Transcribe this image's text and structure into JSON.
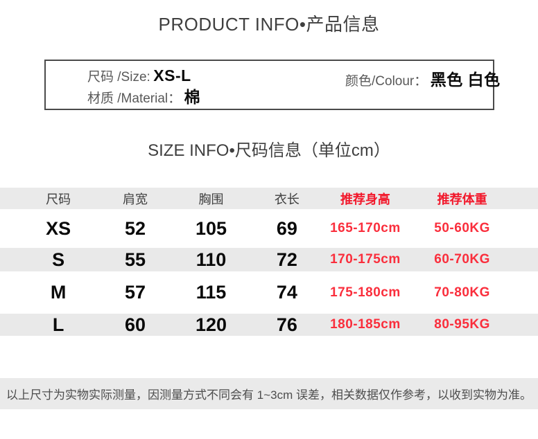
{
  "page": {
    "title": "PRODUCT INFO•产品信息",
    "size_title": "SIZE INFO•尺码信息（单位cm）"
  },
  "info_box": {
    "size_label": "尺码 /Size:",
    "size_value": "XS-L",
    "colour_label": "颜色/Colour：",
    "colour_value": "黑色 白色",
    "material_label": "材质 /Material：",
    "material_value": "棉"
  },
  "size_table": {
    "headers": [
      "尺码",
      "肩宽",
      "胸围",
      "衣长",
      "推荐身高",
      "推荐体重"
    ],
    "rows": [
      {
        "size": "XS",
        "shoulder": "52",
        "bust": "105",
        "length": "69",
        "height": "165-170cm",
        "weight": "50-60KG"
      },
      {
        "size": "S",
        "shoulder": "55",
        "bust": "110",
        "length": "72",
        "height": "170-175cm",
        "weight": "60-70KG"
      },
      {
        "size": "M",
        "shoulder": "57",
        "bust": "115",
        "length": "74",
        "height": "175-180cm",
        "weight": "70-80KG"
      },
      {
        "size": "L",
        "shoulder": "60",
        "bust": "120",
        "length": "76",
        "height": "180-185cm",
        "weight": "80-95KG"
      }
    ]
  },
  "footer": {
    "note": "以上尺寸为实物实际测量，因测量方式不同会有 1~3cm 误差，相关数据仅作参考，以收到实物为准。"
  },
  "colors": {
    "accent_red_header": "#f2182b",
    "accent_red_body": "#fa2e3c",
    "band_gray": "#eaeaea",
    "text_dark": "#3f3f3f"
  }
}
